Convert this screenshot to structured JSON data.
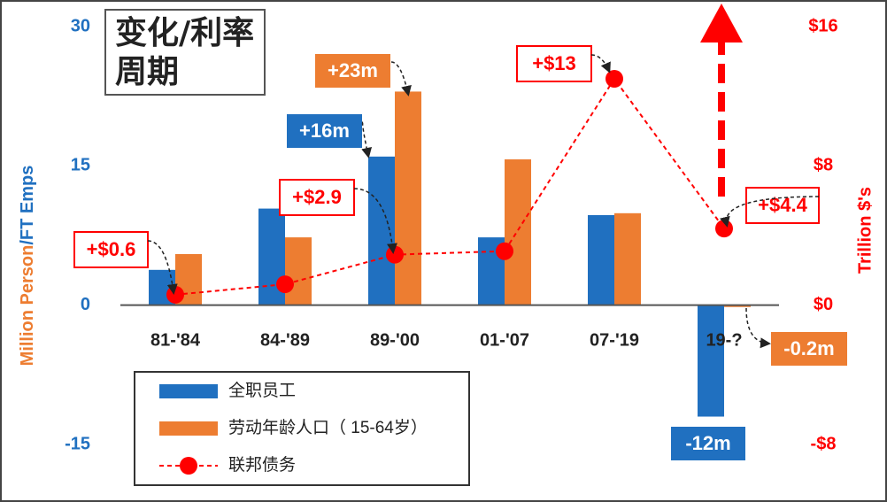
{
  "chart_data": {
    "type": "bar",
    "title": "变化/利率周期",
    "ylabel": [
      "Million Person",
      "/FT Emps"
    ],
    "y2label": "Trillion $'s",
    "categories": [
      "81-'84",
      "84-'89",
      "89-'00",
      "01-'07",
      "07-'19",
      "19-?"
    ],
    "ylim": [
      -15,
      30
    ],
    "yticks": [
      -15,
      0,
      15,
      30
    ],
    "y2lim": [
      -8,
      16
    ],
    "y2ticks": [
      {
        "value": -8,
        "label": "-$8"
      },
      {
        "value": 0,
        "label": "$0"
      },
      {
        "value": 8,
        "label": "$8"
      },
      {
        "value": 16,
        "label": "$16"
      }
    ],
    "legend": "bottom-left",
    "series": [
      {
        "name": "全职员工",
        "type": "bar",
        "color": "#2070c0",
        "values": [
          3.8,
          10.4,
          16,
          7.3,
          9.7,
          -12
        ],
        "value_labels": [
          null,
          null,
          "+16m",
          null,
          null,
          "-12m"
        ]
      },
      {
        "name": "劳动年龄人口（ 15-64岁）",
        "type": "bar",
        "color": "#ed7d31",
        "values": [
          5.5,
          7.3,
          23,
          15.7,
          9.9,
          -0.2
        ],
        "value_labels": [
          null,
          null,
          "+23m",
          null,
          null,
          "-0.2m"
        ]
      },
      {
        "name": "联邦债务",
        "type": "line",
        "axis": "y2",
        "color": "#ff0000",
        "values": [
          0.6,
          1.2,
          2.9,
          3.1,
          13,
          4.4
        ],
        "value_labels": [
          "+$0.6",
          null,
          "+$2.9",
          null,
          "+$13",
          "+$4.4"
        ]
      }
    ]
  }
}
